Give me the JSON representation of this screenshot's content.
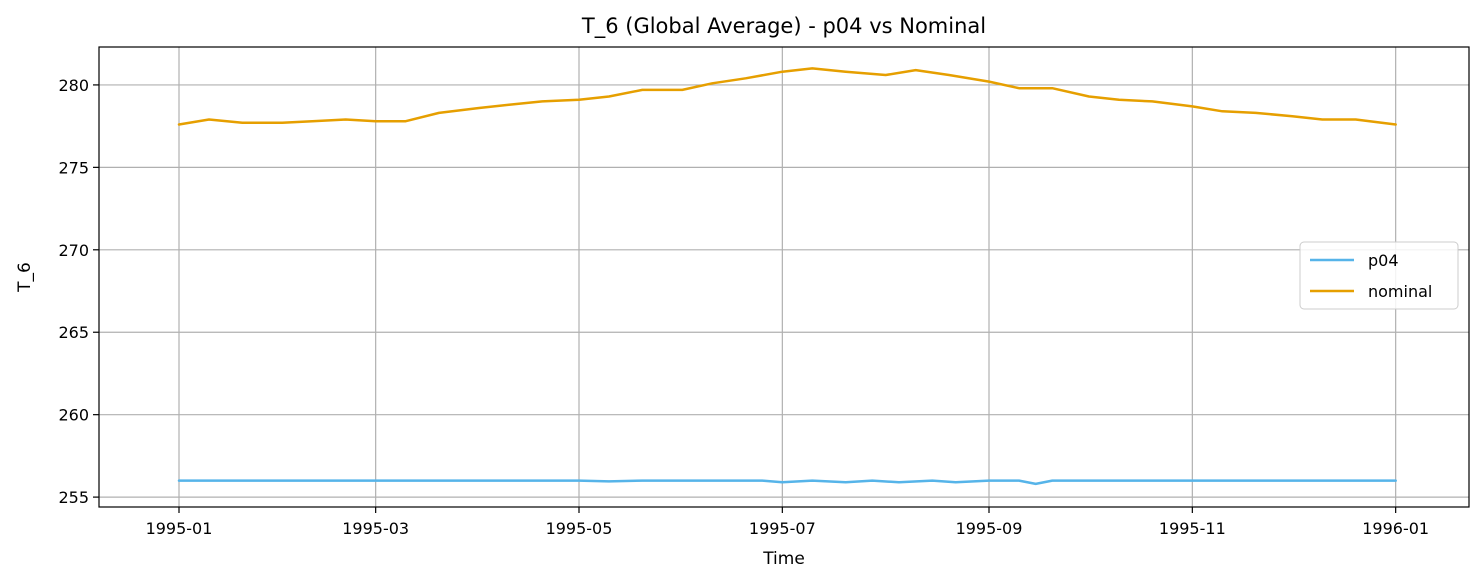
{
  "chart_data": {
    "type": "line",
    "title": "T_6 (Global Average) - p04 vs Nominal",
    "xlabel": "Time",
    "ylabel": "T_6",
    "grid": true,
    "legend_position": "center-right",
    "xlim": [
      "1994-12-08",
      "1996-01-23"
    ],
    "ylim": [
      254.4,
      282.3
    ],
    "x_ticks": [
      "1995-01",
      "1995-03",
      "1995-05",
      "1995-07",
      "1995-09",
      "1995-11",
      "1996-01"
    ],
    "y_ticks": [
      255,
      260,
      265,
      270,
      275,
      280
    ],
    "series": [
      {
        "name": "p04",
        "color": "#56B4E9",
        "x": [
          "1995-01-01",
          "1995-01-15",
          "1995-02-01",
          "1995-02-15",
          "1995-03-01",
          "1995-03-15",
          "1995-04-01",
          "1995-04-15",
          "1995-05-01",
          "1995-05-10",
          "1995-05-20",
          "1995-06-01",
          "1995-06-15",
          "1995-06-25",
          "1995-07-01",
          "1995-07-10",
          "1995-07-20",
          "1995-07-28",
          "1995-08-05",
          "1995-08-15",
          "1995-08-22",
          "1995-09-01",
          "1995-09-10",
          "1995-09-15",
          "1995-09-20",
          "1995-10-01",
          "1995-10-15",
          "1995-11-01",
          "1995-11-15",
          "1995-12-01",
          "1995-12-15",
          "1996-01-01"
        ],
        "values": [
          256.0,
          256.0,
          256.0,
          256.0,
          256.0,
          256.0,
          256.0,
          256.0,
          256.0,
          255.95,
          256.0,
          256.0,
          256.0,
          256.0,
          255.9,
          256.0,
          255.9,
          256.0,
          255.9,
          256.0,
          255.9,
          256.0,
          256.0,
          255.8,
          256.0,
          256.0,
          256.0,
          256.0,
          256.0,
          256.0,
          256.0,
          256.0
        ]
      },
      {
        "name": "nominal",
        "color": "#E69F00",
        "x": [
          "1995-01-01",
          "1995-01-10",
          "1995-01-20",
          "1995-02-01",
          "1995-02-10",
          "1995-02-20",
          "1995-03-01",
          "1995-03-10",
          "1995-03-20",
          "1995-04-01",
          "1995-04-10",
          "1995-04-20",
          "1995-05-01",
          "1995-05-10",
          "1995-05-20",
          "1995-06-01",
          "1995-06-10",
          "1995-06-20",
          "1995-07-01",
          "1995-07-10",
          "1995-07-20",
          "1995-08-01",
          "1995-08-10",
          "1995-08-20",
          "1995-09-01",
          "1995-09-10",
          "1995-09-20",
          "1995-10-01",
          "1995-10-10",
          "1995-10-20",
          "1995-11-01",
          "1995-11-10",
          "1995-11-20",
          "1995-12-01",
          "1995-12-10",
          "1995-12-20",
          "1996-01-01"
        ],
        "values": [
          277.6,
          277.9,
          277.7,
          277.7,
          277.8,
          277.9,
          277.8,
          277.8,
          278.3,
          278.6,
          278.8,
          279.0,
          279.1,
          279.3,
          279.7,
          279.7,
          280.1,
          280.4,
          280.8,
          281.0,
          280.8,
          280.6,
          280.9,
          280.6,
          280.2,
          279.8,
          279.8,
          279.3,
          279.1,
          279.0,
          278.7,
          278.4,
          278.3,
          278.1,
          277.9,
          277.9,
          277.6
        ]
      }
    ]
  }
}
